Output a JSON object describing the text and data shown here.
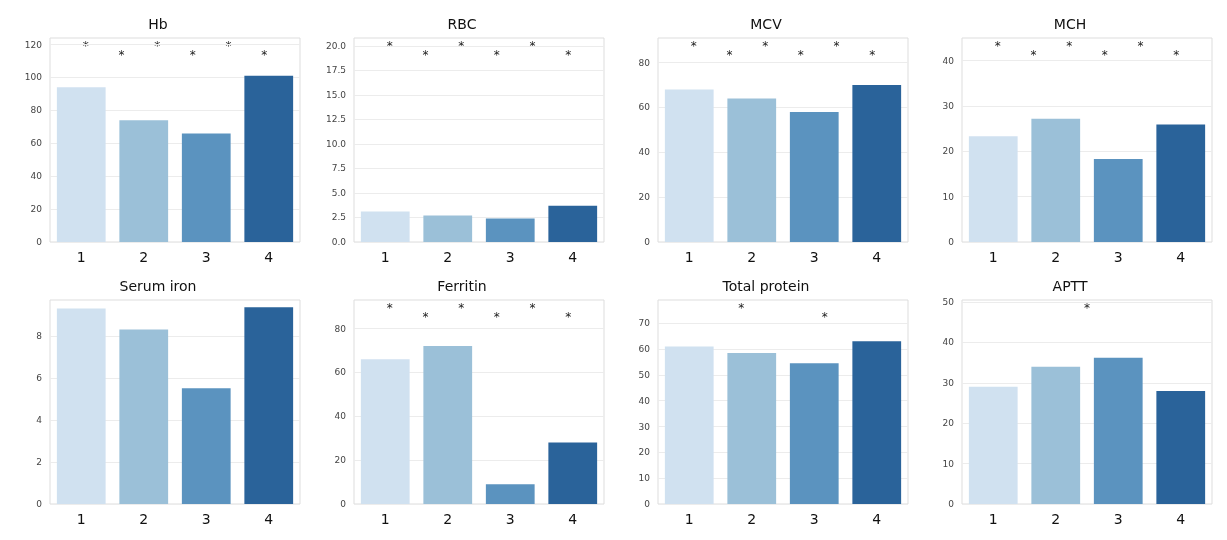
{
  "chart_data": [
    {
      "type": "bar",
      "title": "Hb",
      "categories": [
        "1",
        "2",
        "3",
        "4"
      ],
      "values": [
        94,
        74,
        66,
        101
      ],
      "colors": [
        "#d0e1f0",
        "#9bc0d8",
        "#5b93bf",
        "#2a639a"
      ],
      "ylim": [
        0,
        124
      ],
      "yticks": [
        0,
        20,
        40,
        60,
        80,
        100,
        120
      ],
      "grid": "y",
      "annotations": [
        "*",
        "*",
        "*",
        "*",
        "*",
        "*"
      ]
    },
    {
      "type": "bar",
      "title": "RBC",
      "categories": [
        "1",
        "2",
        "3",
        "4"
      ],
      "values": [
        3.1,
        2.7,
        2.4,
        3.7
      ],
      "colors": [
        "#d0e1f0",
        "#9bc0d8",
        "#5b93bf",
        "#2a639a"
      ],
      "ylim": [
        0,
        20.8
      ],
      "yticks": [
        {
          "value": 0,
          "label": "0.0"
        },
        {
          "value": 2.5,
          "label": "2.5"
        },
        {
          "value": 5,
          "label": "5.0"
        },
        {
          "value": 7.5,
          "label": "7.5"
        },
        {
          "value": 10,
          "label": "10.0"
        },
        {
          "value": 12.5,
          "label": "12.5"
        },
        {
          "value": 15,
          "label": "15.0"
        },
        {
          "value": 17.5,
          "label": "17.5"
        },
        {
          "value": 20,
          "label": "20.0"
        }
      ],
      "grid": "y",
      "annotations": [
        "*",
        "*",
        "*",
        "*",
        "*",
        "*"
      ]
    },
    {
      "type": "bar",
      "title": "MCV",
      "categories": [
        "1",
        "2",
        "3",
        "4"
      ],
      "values": [
        68,
        64,
        58,
        70
      ],
      "colors": [
        "#d0e1f0",
        "#9bc0d8",
        "#5b93bf",
        "#2a639a"
      ],
      "ylim": [
        0,
        91
      ],
      "yticks": [
        0,
        20,
        40,
        60,
        80
      ],
      "grid": "y",
      "annotations": [
        "*",
        "*",
        "*",
        "*",
        "*",
        "*"
      ]
    },
    {
      "type": "bar",
      "title": "MCH",
      "categories": [
        "1",
        "2",
        "3",
        "4"
      ],
      "values": [
        23.3,
        27.2,
        18.3,
        25.9
      ],
      "colors": [
        "#d0e1f0",
        "#9bc0d8",
        "#5b93bf",
        "#2a639a"
      ],
      "ylim": [
        0,
        45
      ],
      "yticks": [
        0,
        10,
        20,
        30,
        40
      ],
      "grid": "y",
      "annotations": [
        "*",
        "*",
        "*",
        "*",
        "*",
        "*"
      ]
    },
    {
      "type": "bar",
      "title": "Serum iron",
      "categories": [
        "1",
        "2",
        "3",
        "4"
      ],
      "values": [
        9.3,
        8.3,
        5.5,
        9.35
      ],
      "colors": [
        "#d0e1f0",
        "#9bc0d8",
        "#5b93bf",
        "#2a639a"
      ],
      "ylim": [
        0,
        9.7
      ],
      "yticks": [
        0,
        2,
        4,
        6,
        8
      ],
      "grid": "y"
    },
    {
      "type": "bar",
      "title": "Ferritin",
      "categories": [
        "1",
        "2",
        "3",
        "4"
      ],
      "values": [
        66,
        72,
        9,
        28
      ],
      "colors": [
        "#d0e1f0",
        "#9bc0d8",
        "#5b93bf",
        "#2a639a"
      ],
      "ylim": [
        0,
        93
      ],
      "yticks": [
        0,
        20,
        40,
        60,
        80
      ],
      "grid": "y",
      "annotations": [
        "*",
        "*",
        "*",
        "*",
        "*",
        "*"
      ]
    },
    {
      "type": "bar",
      "title": "Total protein",
      "categories": [
        "1",
        "2",
        "3",
        "4"
      ],
      "values": [
        61,
        58.5,
        54.5,
        63
      ],
      "colors": [
        "#d0e1f0",
        "#9bc0d8",
        "#5b93bf",
        "#2a639a"
      ],
      "ylim": [
        0,
        79
      ],
      "yticks": [
        0,
        10,
        20,
        30,
        40,
        50,
        60,
        70
      ],
      "grid": "y",
      "annotations": [
        "*",
        "*"
      ]
    },
    {
      "type": "bar",
      "title": "APTT",
      "categories": [
        "1",
        "2",
        "3",
        "4"
      ],
      "values": [
        29,
        34,
        36.2,
        28
      ],
      "colors": [
        "#d0e1f0",
        "#9bc0d8",
        "#5b93bf",
        "#2a639a"
      ],
      "ylim": [
        0,
        50.5
      ],
      "yticks": [
        0,
        10,
        20,
        30,
        40,
        50
      ],
      "grid": "y",
      "annotations": [
        "*"
      ]
    }
  ]
}
